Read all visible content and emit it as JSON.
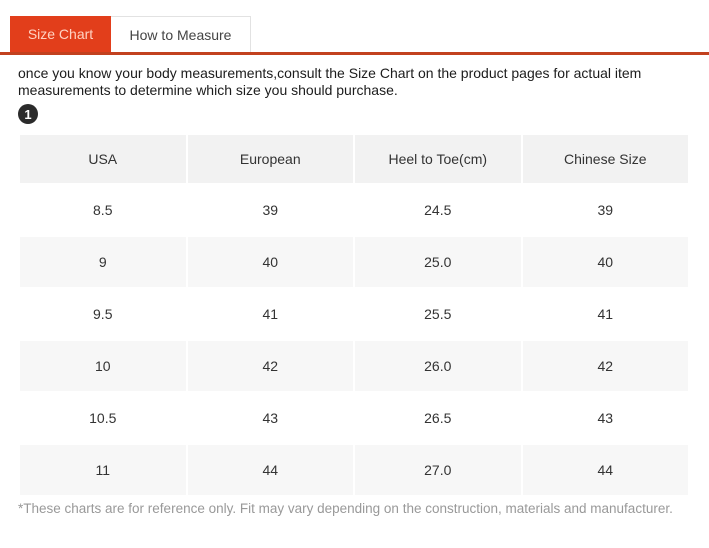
{
  "tabs": [
    {
      "label": "Size Chart",
      "active": true
    },
    {
      "label": "How to Measure",
      "active": false
    }
  ],
  "description": "once you know your body measurements,consult the Size Chart on the product pages for actual item measurements to determine which size you should purchase.",
  "step_badge": "1",
  "table": {
    "headers": [
      "USA",
      "European",
      "Heel to Toe(cm)",
      "Chinese Size"
    ],
    "rows": [
      [
        "8.5",
        "39",
        "24.5",
        "39"
      ],
      [
        "9",
        "40",
        "25.0",
        "40"
      ],
      [
        "9.5",
        "41",
        "25.5",
        "41"
      ],
      [
        "10",
        "42",
        "26.0",
        "42"
      ],
      [
        "10.5",
        "43",
        "26.5",
        "43"
      ],
      [
        "11",
        "44",
        "27.0",
        "44"
      ]
    ]
  },
  "footnote": "*These charts are for reference only. Fit may vary depending on the construction, materials and manufacturer.",
  "colors": {
    "accent": "#e23e1b",
    "underline": "#c2411f",
    "tab_active_text": "#ffd2c2",
    "header_bg": "#f2f2f2",
    "alt_row_bg": "#f7f7f7"
  }
}
